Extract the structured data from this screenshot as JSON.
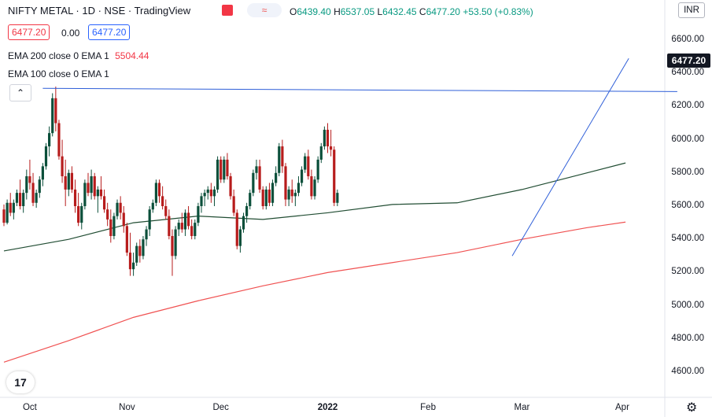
{
  "header": {
    "title": "NIFTY METAL · 1D · NSE · TradingView",
    "ohlc": {
      "o_label": "O",
      "o": "6439.40",
      "h_label": "H",
      "h": "6537.05",
      "l_label": "L",
      "l": "6432.45",
      "c_label": "C",
      "c": "6477.20",
      "change": "+53.50 (+0.83%)"
    },
    "bid": "6477.20",
    "spread": "0.00",
    "ask": "6477.20",
    "ema200_label": "EMA 200 close 0 EMA 1",
    "ema200_value": "5504.44",
    "ema100_label": "EMA 100 close 0 EMA 1",
    "currency": "INR",
    "last_price": "6477.20",
    "pill_icon": "≈"
  },
  "colors": {
    "up": "#0b4f3a",
    "down": "#b71c1c",
    "ema200": "#f05252",
    "ema100": "#214d33",
    "trend": "#2f5fd8",
    "accent_box": "#f23645",
    "ask_box": "#2962ff"
  },
  "chart_data": {
    "type": "candlestick",
    "ylim": [
      4500,
      6700
    ],
    "y_ticks": [
      4600,
      4800,
      5000,
      5200,
      5400,
      5600,
      5800,
      6000,
      6200,
      6400,
      6600
    ],
    "y_tick_labels": [
      "4600.00",
      "4800.00",
      "5000.00",
      "5200.00",
      "5400.00",
      "5600.00",
      "5800.00",
      "6000.00",
      "6200.00",
      "6400.00",
      "6600.00"
    ],
    "x_ticks": [
      {
        "label": "Oct",
        "index": 8
      },
      {
        "label": "Nov",
        "index": 38
      },
      {
        "label": "Dec",
        "index": 67
      },
      {
        "label": "2022",
        "index": 100
      },
      {
        "label": "Feb",
        "index": 131
      },
      {
        "label": "Mar",
        "index": 160
      },
      {
        "label": "Apr",
        "index": 191
      }
    ],
    "candles": [
      [
        5580,
        5610,
        5480,
        5500
      ],
      [
        5500,
        5640,
        5490,
        5620
      ],
      [
        5620,
        5680,
        5540,
        5560
      ],
      [
        5560,
        5640,
        5520,
        5620
      ],
      [
        5620,
        5700,
        5600,
        5680
      ],
      [
        5680,
        5760,
        5580,
        5600
      ],
      [
        5600,
        5700,
        5560,
        5680
      ],
      [
        5680,
        5820,
        5640,
        5780
      ],
      [
        5780,
        5880,
        5700,
        5740
      ],
      [
        5740,
        5800,
        5600,
        5620
      ],
      [
        5620,
        5700,
        5590,
        5680
      ],
      [
        5680,
        5780,
        5650,
        5760
      ],
      [
        5760,
        5860,
        5720,
        5840
      ],
      [
        5840,
        5980,
        5820,
        5960
      ],
      [
        5960,
        6080,
        5900,
        6040
      ],
      [
        6040,
        6280,
        6020,
        6250
      ],
      [
        6250,
        6320,
        6050,
        6100
      ],
      [
        6100,
        6120,
        5880,
        5900
      ],
      [
        5900,
        6000,
        5740,
        5780
      ],
      [
        5780,
        5880,
        5600,
        5700
      ],
      [
        5700,
        5820,
        5660,
        5800
      ],
      [
        5800,
        5840,
        5680,
        5700
      ],
      [
        5700,
        5760,
        5560,
        5600
      ],
      [
        5600,
        5680,
        5480,
        5500
      ],
      [
        5500,
        5620,
        5460,
        5600
      ],
      [
        5600,
        5760,
        5580,
        5740
      ],
      [
        5740,
        5800,
        5660,
        5680
      ],
      [
        5680,
        5820,
        5640,
        5780
      ],
      [
        5780,
        5800,
        5640,
        5660
      ],
      [
        5660,
        5720,
        5560,
        5700
      ],
      [
        5700,
        5780,
        5640,
        5660
      ],
      [
        5660,
        5700,
        5560,
        5580
      ],
      [
        5580,
        5620,
        5480,
        5520
      ],
      [
        5520,
        5580,
        5380,
        5420
      ],
      [
        5420,
        5560,
        5400,
        5540
      ],
      [
        5540,
        5640,
        5520,
        5620
      ],
      [
        5620,
        5660,
        5520,
        5560
      ],
      [
        5560,
        5600,
        5440,
        5480
      ],
      [
        5480,
        5500,
        5300,
        5320
      ],
      [
        5320,
        5440,
        5180,
        5220
      ],
      [
        5220,
        5320,
        5180,
        5260
      ],
      [
        5260,
        5380,
        5240,
        5360
      ],
      [
        5360,
        5400,
        5260,
        5300
      ],
      [
        5300,
        5420,
        5280,
        5400
      ],
      [
        5400,
        5480,
        5360,
        5460
      ],
      [
        5460,
        5600,
        5420,
        5580
      ],
      [
        5580,
        5640,
        5560,
        5620
      ],
      [
        5620,
        5760,
        5600,
        5740
      ],
      [
        5740,
        5760,
        5620,
        5660
      ],
      [
        5660,
        5720,
        5580,
        5600
      ],
      [
        5600,
        5640,
        5520,
        5540
      ],
      [
        5540,
        5580,
        5400,
        5420
      ],
      [
        5420,
        5460,
        5180,
        5300
      ],
      [
        5300,
        5480,
        5280,
        5460
      ],
      [
        5460,
        5520,
        5420,
        5500
      ],
      [
        5500,
        5560,
        5440,
        5460
      ],
      [
        5460,
        5580,
        5420,
        5560
      ],
      [
        5560,
        5600,
        5460,
        5480
      ],
      [
        5480,
        5520,
        5400,
        5420
      ],
      [
        5420,
        5520,
        5400,
        5500
      ],
      [
        5500,
        5620,
        5480,
        5600
      ],
      [
        5600,
        5680,
        5560,
        5660
      ],
      [
        5660,
        5700,
        5600,
        5680
      ],
      [
        5680,
        5720,
        5640,
        5700
      ],
      [
        5700,
        5740,
        5620,
        5660
      ],
      [
        5660,
        5720,
        5600,
        5700
      ],
      [
        5700,
        5900,
        5680,
        5880
      ],
      [
        5880,
        5900,
        5740,
        5760
      ],
      [
        5760,
        5900,
        5740,
        5880
      ],
      [
        5880,
        5920,
        5760,
        5780
      ],
      [
        5780,
        5800,
        5640,
        5660
      ],
      [
        5660,
        5700,
        5540,
        5560
      ],
      [
        5560,
        5580,
        5340,
        5360
      ],
      [
        5360,
        5480,
        5320,
        5460
      ],
      [
        5460,
        5560,
        5440,
        5540
      ],
      [
        5540,
        5620,
        5500,
        5600
      ],
      [
        5600,
        5700,
        5580,
        5680
      ],
      [
        5680,
        5820,
        5660,
        5800
      ],
      [
        5800,
        5880,
        5760,
        5840
      ],
      [
        5840,
        5880,
        5680,
        5700
      ],
      [
        5700,
        5720,
        5580,
        5600
      ],
      [
        5600,
        5720,
        5580,
        5700
      ],
      [
        5700,
        5740,
        5600,
        5620
      ],
      [
        5620,
        5760,
        5600,
        5740
      ],
      [
        5740,
        5840,
        5720,
        5800
      ],
      [
        5800,
        5980,
        5780,
        5960
      ],
      [
        5960,
        6000,
        5800,
        5840
      ],
      [
        5840,
        5860,
        5600,
        5640
      ],
      [
        5640,
        5720,
        5600,
        5700
      ],
      [
        5700,
        5760,
        5620,
        5660
      ],
      [
        5660,
        5700,
        5600,
        5680
      ],
      [
        5680,
        5780,
        5660,
        5740
      ],
      [
        5740,
        5840,
        5720,
        5820
      ],
      [
        5820,
        5920,
        5800,
        5900
      ],
      [
        5900,
        5940,
        5760,
        5780
      ],
      [
        5780,
        5820,
        5640,
        5660
      ],
      [
        5660,
        5780,
        5640,
        5760
      ],
      [
        5760,
        5900,
        5740,
        5880
      ],
      [
        5880,
        5980,
        5860,
        5960
      ],
      [
        5960,
        6080,
        5940,
        6060
      ],
      [
        6060,
        6100,
        5920,
        5960
      ],
      [
        5960,
        6060,
        5900,
        5940
      ],
      [
        5940,
        5960,
        5600,
        5620
      ],
      [
        5620,
        5700,
        5600,
        5680
      ]
    ],
    "ema200": [
      [
        0,
        4660
      ],
      [
        20,
        4790
      ],
      [
        40,
        4930
      ],
      [
        60,
        5030
      ],
      [
        80,
        5120
      ],
      [
        100,
        5200
      ],
      [
        120,
        5260
      ],
      [
        140,
        5320
      ],
      [
        160,
        5400
      ],
      [
        180,
        5470
      ],
      [
        192,
        5504
      ]
    ],
    "ema100": [
      [
        0,
        5330
      ],
      [
        20,
        5400
      ],
      [
        40,
        5500
      ],
      [
        60,
        5540
      ],
      [
        80,
        5520
      ],
      [
        100,
        5560
      ],
      [
        120,
        5610
      ],
      [
        140,
        5620
      ],
      [
        160,
        5700
      ],
      [
        180,
        5800
      ],
      [
        192,
        5860
      ]
    ],
    "horizontal_line": [
      [
        12,
        6310
      ],
      [
        208,
        6290
      ]
    ],
    "trend_line": [
      [
        157,
        5300
      ],
      [
        193,
        6490
      ]
    ]
  }
}
